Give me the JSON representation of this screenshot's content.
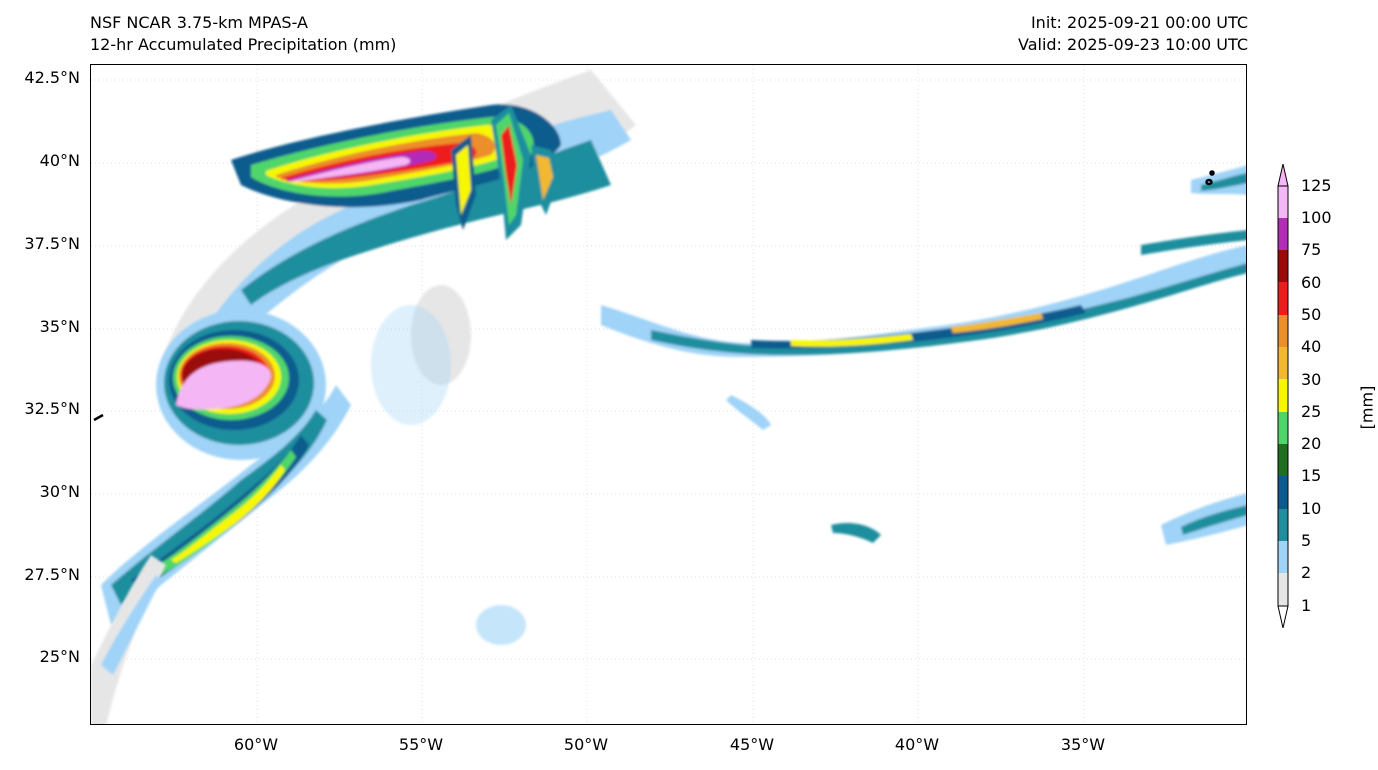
{
  "header": {
    "model": "NSF NCAR 3.75-km MPAS-A",
    "field": "12-hr Accumulated Precipitation (mm)",
    "init": "Init: 2025-09-21 00:00 UTC",
    "valid": "Valid: 2025-09-23 10:00 UTC"
  },
  "axes": {
    "lat_labels": [
      "42.5°N",
      "40°N",
      "37.5°N",
      "35°N",
      "32.5°N",
      "30°N",
      "27.5°N",
      "25°N"
    ],
    "lon_labels": [
      "60°W",
      "55°W",
      "50°W",
      "45°W",
      "40°W",
      "35°W"
    ],
    "lat_range": [
      23.0,
      43.0
    ],
    "lon_range": [
      -65.0,
      -30.0
    ],
    "grid": true
  },
  "colorbar": {
    "unit": "[mm]",
    "levels": [
      "1",
      "2",
      "5",
      "10",
      "15",
      "20",
      "25",
      "30",
      "40",
      "50",
      "60",
      "75",
      "100",
      "125"
    ],
    "colors": [
      "#e6e6e6",
      "#9fd3f7",
      "#1f8e9e",
      "#0b5c8e",
      "#1f6f1f",
      "#4fd66a",
      "#f7f700",
      "#f2b830",
      "#ec8e2a",
      "#ee1c1c",
      "#9b0a0a",
      "#b22cb8",
      "#f5b6f5"
    ],
    "extend": "both"
  },
  "legend_colors": {
    "coastline": "#000000",
    "frame": "#000000"
  }
}
